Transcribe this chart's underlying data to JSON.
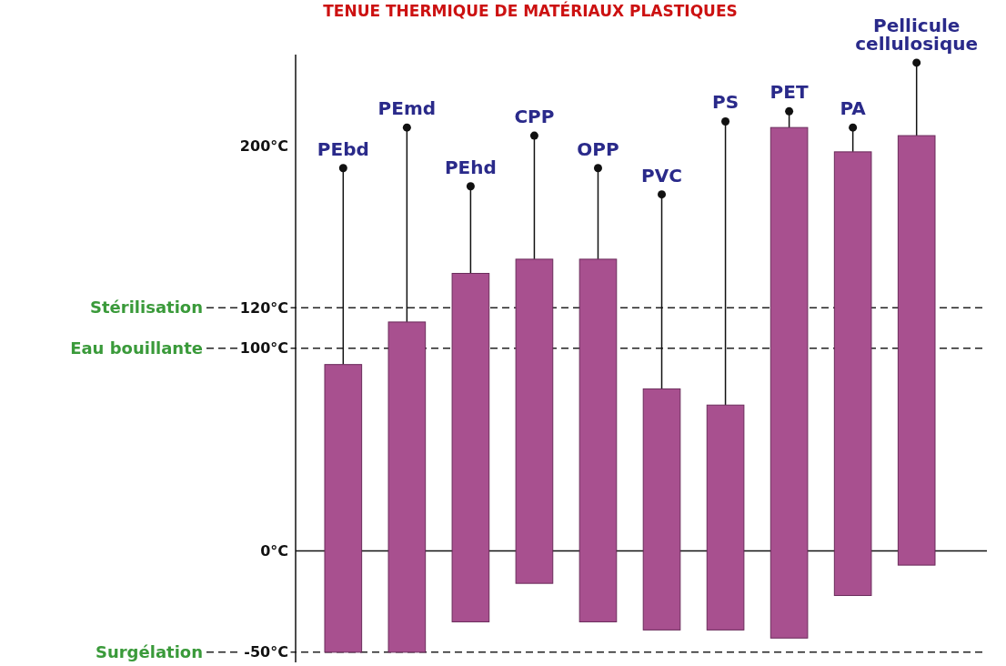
{
  "chart_data": {
    "type": "bar",
    "title": "TENUE THERMIQUE DE MATÉRIAUX PLASTIQUES",
    "categories": [
      "PEbd",
      "PEmd",
      "PEhd",
      "CPP",
      "OPP",
      "PVC",
      "PS",
      "PET",
      "PA",
      "Pellicule cellulosique"
    ],
    "base": [
      -50,
      -50,
      -35,
      -16,
      -35,
      -39,
      -39,
      -43,
      -22,
      -7
    ],
    "values": [
      142,
      163,
      172,
      160,
      179,
      119,
      111,
      252,
      219,
      212
    ],
    "errors": [
      [
        92,
        189
      ],
      [
        113,
        209
      ],
      [
        137,
        180
      ],
      [
        144,
        205
      ],
      [
        144,
        189
      ],
      [
        80,
        176
      ],
      [
        72,
        212
      ],
      [
        209,
        217
      ],
      [
        197,
        209
      ],
      [
        205,
        241
      ]
    ],
    "color": "#a8508f",
    "ylim": [
      -55,
      245
    ],
    "yticks": [
      {
        "value": -50,
        "label": "-50°C"
      },
      {
        "value": 0,
        "label": "0°C"
      },
      {
        "value": 100,
        "label": "100°C"
      },
      {
        "value": 120,
        "label": "120°C"
      },
      {
        "value": 200,
        "label": "200°C"
      }
    ],
    "ref_lines": [
      {
        "axis": "y",
        "value": 120,
        "label": "Stérilisation",
        "line_style": "dashed"
      },
      {
        "axis": "y",
        "value": 100,
        "label": "Eau bouillante",
        "line_style": "dashed"
      },
      {
        "axis": "y",
        "value": -50,
        "label": "Surgélation",
        "line_style": "dashed"
      }
    ],
    "grid": false
  }
}
